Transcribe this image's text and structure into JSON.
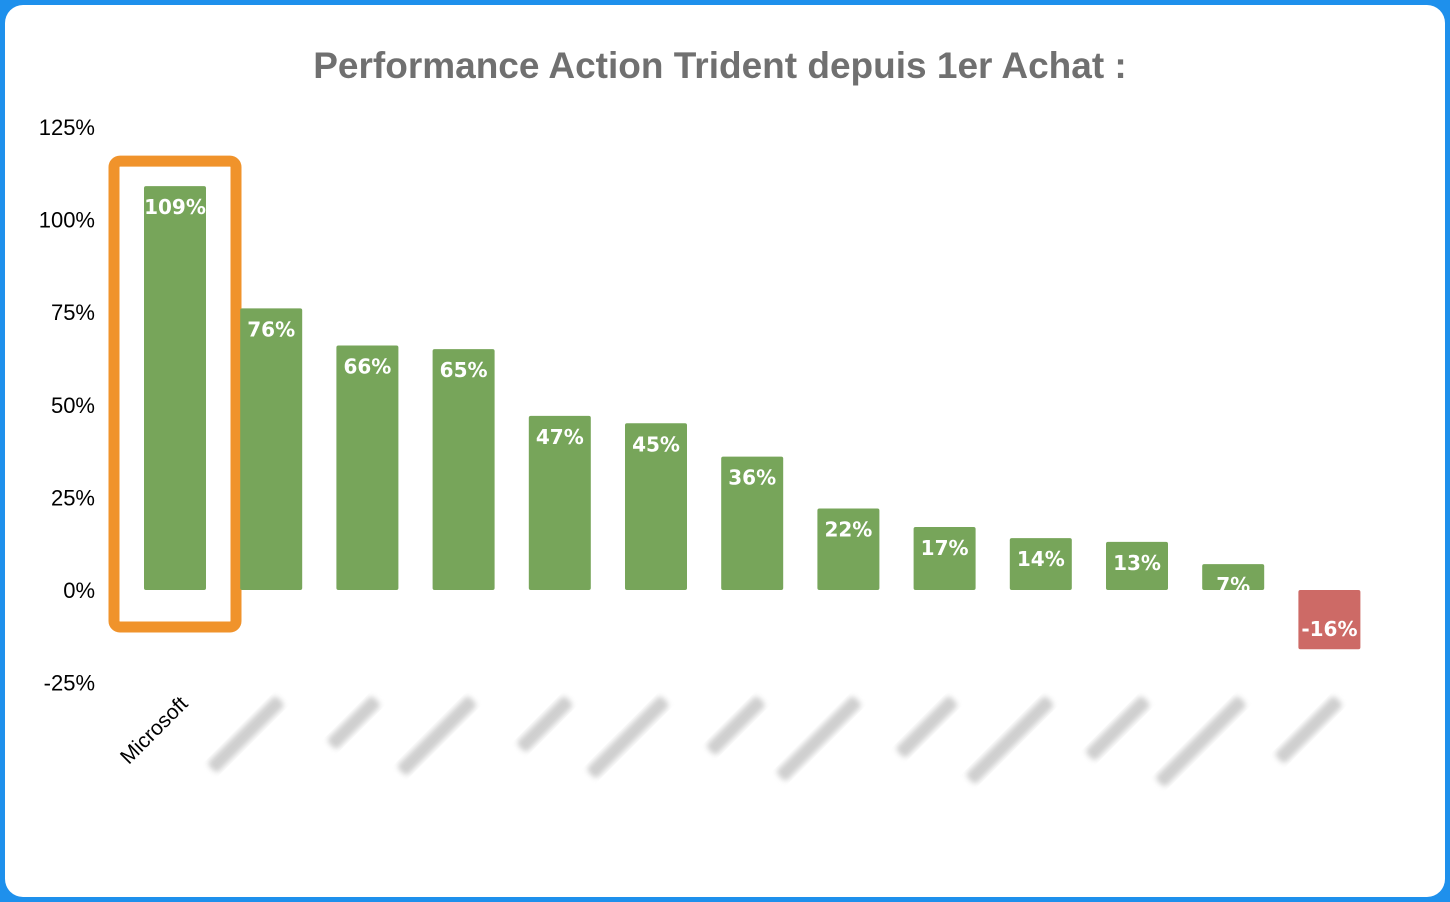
{
  "chart_data": {
    "type": "bar",
    "title": "Performance Action Trident depuis 1er Achat :",
    "categories": [
      "Microsoft",
      "",
      "",
      "",
      "",
      "",
      "",
      "",
      "",
      "",
      "",
      "",
      ""
    ],
    "values": [
      109,
      76,
      66,
      65,
      47,
      45,
      36,
      22,
      17,
      14,
      13,
      7,
      -16
    ],
    "value_labels": [
      "109%",
      "76%",
      "66%",
      "65%",
      "47%",
      "45%",
      "36%",
      "22%",
      "17%",
      "14%",
      "13%",
      "7%",
      "-16%"
    ],
    "category_labels_blurred": [
      false,
      true,
      true,
      true,
      true,
      true,
      true,
      true,
      true,
      true,
      true,
      true,
      true
    ],
    "ylim": [
      -25,
      125
    ],
    "yticks": [
      -25,
      0,
      25,
      50,
      75,
      100,
      125
    ],
    "ytick_labels": [
      "-25%",
      "0%",
      "25%",
      "50%",
      "75%",
      "100%",
      "125%"
    ],
    "xlabel": "",
    "ylabel": "",
    "grid": false,
    "legend": "none",
    "highlighted_category": "Microsoft",
    "colors": {
      "positive": "#77a55a",
      "negative": "#cd6a66",
      "highlight_box": "#f0932b",
      "title": "#707070",
      "frame_border": "#1e90ec"
    }
  }
}
